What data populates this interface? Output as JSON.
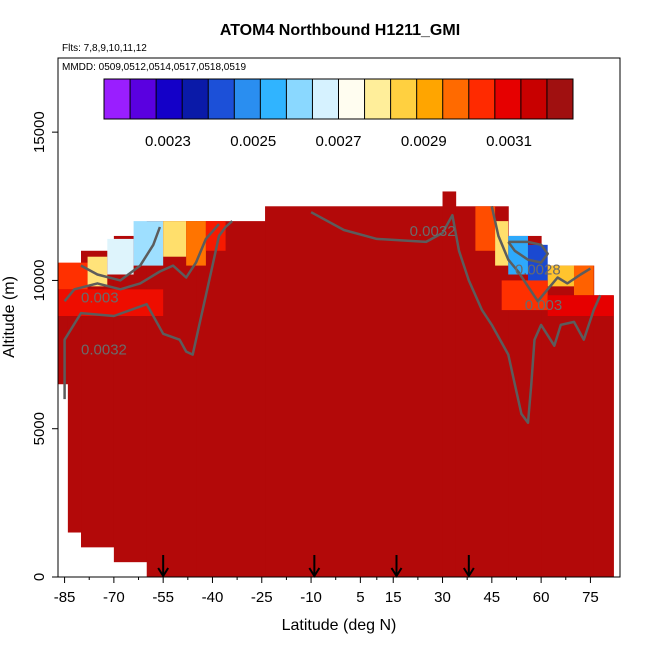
{
  "chart_data": {
    "type": "heatmap",
    "title": "ATOM4 Northbound H1211_GMI",
    "subtitle_flights": "Flts: 7,8,9,10,11,12",
    "subtitle_dates": "MMDD: 0509,0512,0514,0517,0518,0519",
    "xlabel": "Latitude (deg N)",
    "ylabel": "Altitude (m)",
    "xlim": [
      -87,
      84
    ],
    "ylim": [
      0,
      17500
    ],
    "x_ticks": [
      -85,
      -70,
      -55,
      -40,
      -25,
      -10,
      5,
      15,
      30,
      45,
      60,
      75
    ],
    "y_ticks": [
      0,
      5000,
      10000,
      15000
    ],
    "colorbar": {
      "vmin": 0.00215,
      "vmax": 0.00325,
      "ticks": [
        0.0023,
        0.0025,
        0.0027,
        0.0029,
        0.0031
      ],
      "tick_labels": [
        "0.0023",
        "0.0025",
        "0.0027",
        "0.0029",
        "0.0031"
      ],
      "colors": [
        "#9a1eff",
        "#5a00e0",
        "#1400c8",
        "#0a1aa8",
        "#1c50d8",
        "#2a8ef0",
        "#30b4ff",
        "#8ad8ff",
        "#d6f2ff",
        "#fffdf0",
        "#ffee9a",
        "#ffd040",
        "#ffa500",
        "#ff6a00",
        "#ff2a00",
        "#e60000",
        "#c80000",
        "#a01010"
      ]
    },
    "flight_track_latitudes": [
      -55,
      -9,
      16,
      38
    ],
    "contour_labels": [
      {
        "text": "0.0032",
        "x": -80,
        "y": 7500
      },
      {
        "text": "0.003",
        "x": -80,
        "y": 9250
      },
      {
        "text": "0.0032",
        "x": 20,
        "y": 11500
      },
      {
        "text": "0.0028",
        "x": 52,
        "y": 10200
      },
      {
        "text": "0.003",
        "x": 55,
        "y": 9000
      }
    ],
    "columns": [
      {
        "lat_min": -87,
        "lat_max": -84,
        "alt_top": 10500,
        "alt_bottom": 6500
      },
      {
        "lat_min": -84,
        "lat_max": -80,
        "alt_top": 10500,
        "alt_bottom": 1500
      },
      {
        "lat_min": -80,
        "lat_max": -70,
        "alt_top": 11000,
        "alt_bottom": 1000
      },
      {
        "lat_min": -70,
        "lat_max": -60,
        "alt_top": 11500,
        "alt_bottom": 500
      },
      {
        "lat_min": -60,
        "lat_max": -45,
        "alt_top": 12000,
        "alt_bottom": 0
      },
      {
        "lat_min": -45,
        "lat_max": -24,
        "alt_top": 12000,
        "alt_bottom": 0
      },
      {
        "lat_min": -24,
        "lat_max": 30,
        "alt_top": 12500,
        "alt_bottom": 0
      },
      {
        "lat_min": 30,
        "lat_max": 34,
        "alt_top": 13000,
        "alt_bottom": 0
      },
      {
        "lat_min": 34,
        "lat_max": 50,
        "alt_top": 12500,
        "alt_bottom": 0
      },
      {
        "lat_min": 50,
        "lat_max": 60,
        "alt_top": 11500,
        "alt_bottom": 0
      },
      {
        "lat_min": 60,
        "lat_max": 76,
        "alt_top": 10500,
        "alt_bottom": 0
      },
      {
        "lat_min": 76,
        "lat_max": 82,
        "alt_top": 9500,
        "alt_bottom": 0
      }
    ],
    "zones": [
      {
        "lat_min": -87,
        "lat_max": -78,
        "alt_min": 9700,
        "alt_max": 10600,
        "value": 0.00305
      },
      {
        "lat_min": -78,
        "lat_max": -72,
        "alt_min": 9800,
        "alt_max": 10800,
        "value": 0.00282
      },
      {
        "lat_min": -72,
        "lat_max": -64,
        "alt_min": 10200,
        "alt_max": 11400,
        "value": 0.00268
      },
      {
        "lat_min": -64,
        "lat_max": -55,
        "alt_min": 10500,
        "alt_max": 12000,
        "value": 0.00262
      },
      {
        "lat_min": -55,
        "lat_max": -48,
        "alt_min": 10800,
        "alt_max": 12000,
        "value": 0.00283
      },
      {
        "lat_min": -48,
        "lat_max": -42,
        "alt_min": 10500,
        "alt_max": 12000,
        "value": 0.00298
      },
      {
        "lat_min": -42,
        "lat_max": -36,
        "alt_min": 11000,
        "alt_max": 12000,
        "value": 0.00308
      },
      {
        "lat_min": -87,
        "lat_max": -55,
        "alt_min": 8800,
        "alt_max": 9700,
        "value": 0.0031
      },
      {
        "lat_min": 40,
        "lat_max": 46,
        "alt_min": 11000,
        "alt_max": 12500,
        "value": 0.00302
      },
      {
        "lat_min": 46,
        "lat_max": 50,
        "alt_min": 10500,
        "alt_max": 12000,
        "value": 0.00283
      },
      {
        "lat_min": 50,
        "lat_max": 56,
        "alt_min": 10200,
        "alt_max": 11500,
        "value": 0.00252
      },
      {
        "lat_min": 56,
        "lat_max": 62,
        "alt_min": 9800,
        "alt_max": 11200,
        "value": 0.0024
      },
      {
        "lat_min": 62,
        "lat_max": 70,
        "alt_min": 9800,
        "alt_max": 10500,
        "value": 0.00288
      },
      {
        "lat_min": 70,
        "lat_max": 76,
        "alt_min": 9500,
        "alt_max": 10500,
        "value": 0.003
      },
      {
        "lat_min": 48,
        "lat_max": 62,
        "alt_min": 9000,
        "alt_max": 10000,
        "value": 0.00305
      },
      {
        "lat_min": 62,
        "lat_max": 82,
        "alt_min": 8800,
        "alt_max": 9500,
        "value": 0.00312
      }
    ],
    "background_value": 0.00322,
    "contour_0032": [
      [
        -85,
        6000
      ],
      [
        -85,
        8000
      ],
      [
        -80,
        8900
      ],
      [
        -70,
        8800
      ],
      [
        -60,
        9200
      ],
      [
        -55,
        8200
      ],
      [
        -50,
        8000
      ],
      [
        -48,
        7600
      ],
      [
        -46,
        7500
      ],
      [
        -44,
        8500
      ],
      [
        -42,
        9500
      ],
      [
        -40,
        10500
      ],
      [
        -38,
        11500
      ],
      [
        -36,
        11800
      ],
      [
        -34,
        12000
      ]
    ],
    "contour_0030": [
      [
        -85,
        9300
      ],
      [
        -82,
        9700
      ],
      [
        -75,
        9900
      ],
      [
        -68,
        9700
      ],
      [
        -62,
        9900
      ],
      [
        -56,
        10300
      ],
      [
        -52,
        10500
      ],
      [
        -48,
        10100
      ],
      [
        -45,
        10600
      ],
      [
        -42,
        11400
      ],
      [
        -38,
        11900
      ]
    ],
    "contour_0032_north": [
      [
        -10,
        12300
      ],
      [
        0,
        11700
      ],
      [
        10,
        11400
      ],
      [
        25,
        11300
      ],
      [
        30,
        11600
      ],
      [
        33,
        12200
      ],
      [
        35,
        11000
      ],
      [
        38,
        10000
      ],
      [
        42,
        9000
      ],
      [
        45,
        8500
      ],
      [
        50,
        7500
      ],
      [
        52,
        6500
      ],
      [
        54,
        5500
      ],
      [
        56,
        5200
      ],
      [
        57,
        6500
      ],
      [
        58,
        8000
      ],
      [
        60,
        8500
      ],
      [
        64,
        7800
      ],
      [
        66,
        8500
      ],
      [
        70,
        8600
      ],
      [
        73,
        8000
      ],
      [
        76,
        9000
      ],
      [
        78,
        9500
      ]
    ],
    "contour_0030_north": [
      [
        45,
        12500
      ],
      [
        47,
        11500
      ],
      [
        50,
        10700
      ],
      [
        53,
        10300
      ],
      [
        56,
        9800
      ],
      [
        59,
        9300
      ],
      [
        62,
        9700
      ],
      [
        65,
        10100
      ],
      [
        68,
        9900
      ],
      [
        72,
        10200
      ],
      [
        75,
        10400
      ]
    ],
    "contour_0028_north": [
      [
        50,
        11300
      ],
      [
        52,
        11000
      ],
      [
        56,
        10700
      ],
      [
        60,
        10600
      ],
      [
        62,
        10900
      ],
      [
        60,
        11200
      ],
      [
        56,
        11300
      ],
      [
        52,
        11300
      ],
      [
        50,
        11300
      ]
    ],
    "contour_0028_south": [
      [
        -80,
        10500
      ],
      [
        -75,
        10200
      ],
      [
        -68,
        10000
      ],
      [
        -62,
        10500
      ],
      [
        -58,
        11200
      ],
      [
        -56,
        11800
      ]
    ]
  }
}
